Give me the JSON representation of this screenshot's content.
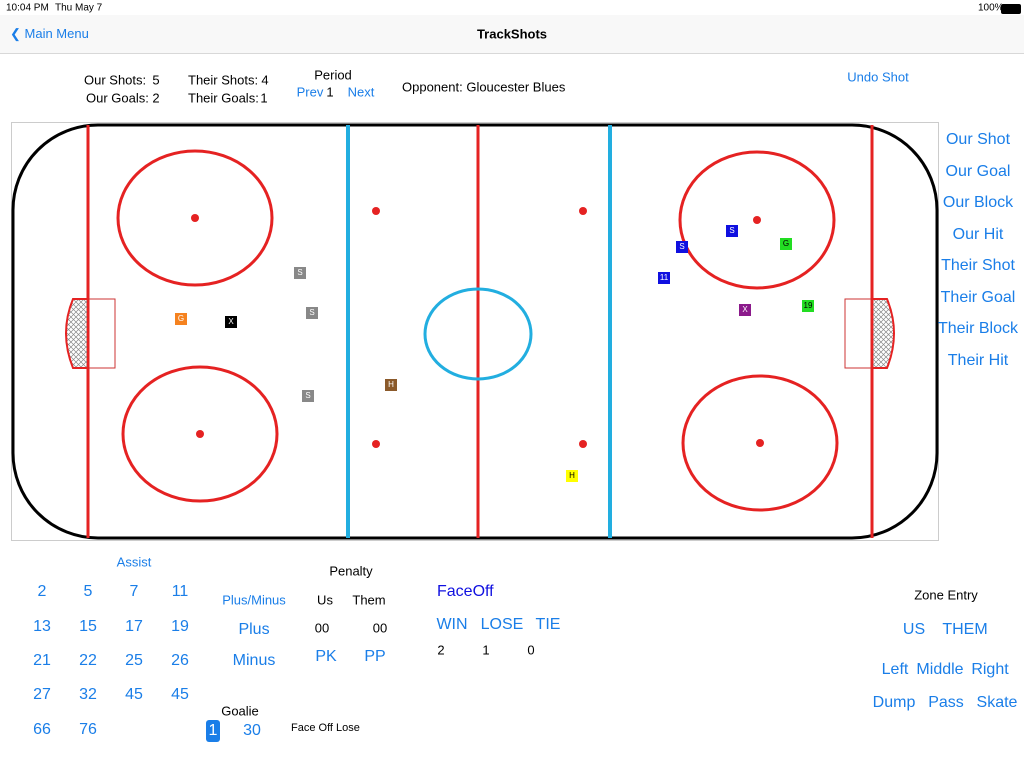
{
  "status_bar": {
    "time": "10:04 PM",
    "date": "Thu May 7",
    "battery": "100%"
  },
  "nav": {
    "back": "Main Menu",
    "title": "TrackShots"
  },
  "summary": {
    "our_shots_label": "Our Shots:",
    "our_shots": 5,
    "our_goals_label": "Our Goals:",
    "our_goals": 2,
    "their_shots_label": "Their Shots:",
    "their_shots": 4,
    "their_goals_label": "Their Goals:",
    "their_goals": 1,
    "period_label": "Period",
    "prev": "Prev",
    "period": 1,
    "next": "Next",
    "opponent": "Opponent: Gloucester Blues",
    "undo": "Undo Shot"
  },
  "rink_markers": [
    "S",
    "S",
    "S",
    "G",
    "X",
    "H",
    "H",
    "S",
    "S",
    "G",
    "11",
    "X",
    "19"
  ],
  "actions": [
    "Our Shot",
    "Our Goal",
    "Our Block",
    "Our Hit",
    "Their Shot",
    "Their Goal",
    "Their Block",
    "Their Hit"
  ],
  "assist": {
    "label": "Assist",
    "players": [
      "2",
      "5",
      "7",
      "11",
      "13",
      "15",
      "17",
      "19",
      "21",
      "22",
      "25",
      "26",
      "27",
      "32",
      "45",
      "45",
      "66",
      "76"
    ]
  },
  "plus_minus": {
    "label": "Plus/Minus",
    "plus": "Plus",
    "minus": "Minus"
  },
  "penalty": {
    "label": "Penalty",
    "us_label": "Us",
    "them_label": "Them",
    "us": "00",
    "them": "00",
    "pk": "PK",
    "pp": "PP"
  },
  "faceoff": {
    "label": "FaceOff",
    "win": "WIN",
    "lose": "LOSE",
    "tie": "TIE",
    "win_count": 2,
    "lose_count": 1,
    "tie_count": 0
  },
  "goalie": {
    "label": "Goalie",
    "options": [
      "1",
      "30"
    ]
  },
  "status_text": "Face Off Lose",
  "zone_entry": {
    "label": "Zone Entry",
    "teams": [
      "US",
      "THEM"
    ],
    "sides": [
      "Left",
      "Middle",
      "Right"
    ],
    "types": [
      "Dump",
      "Pass",
      "Skate"
    ]
  }
}
